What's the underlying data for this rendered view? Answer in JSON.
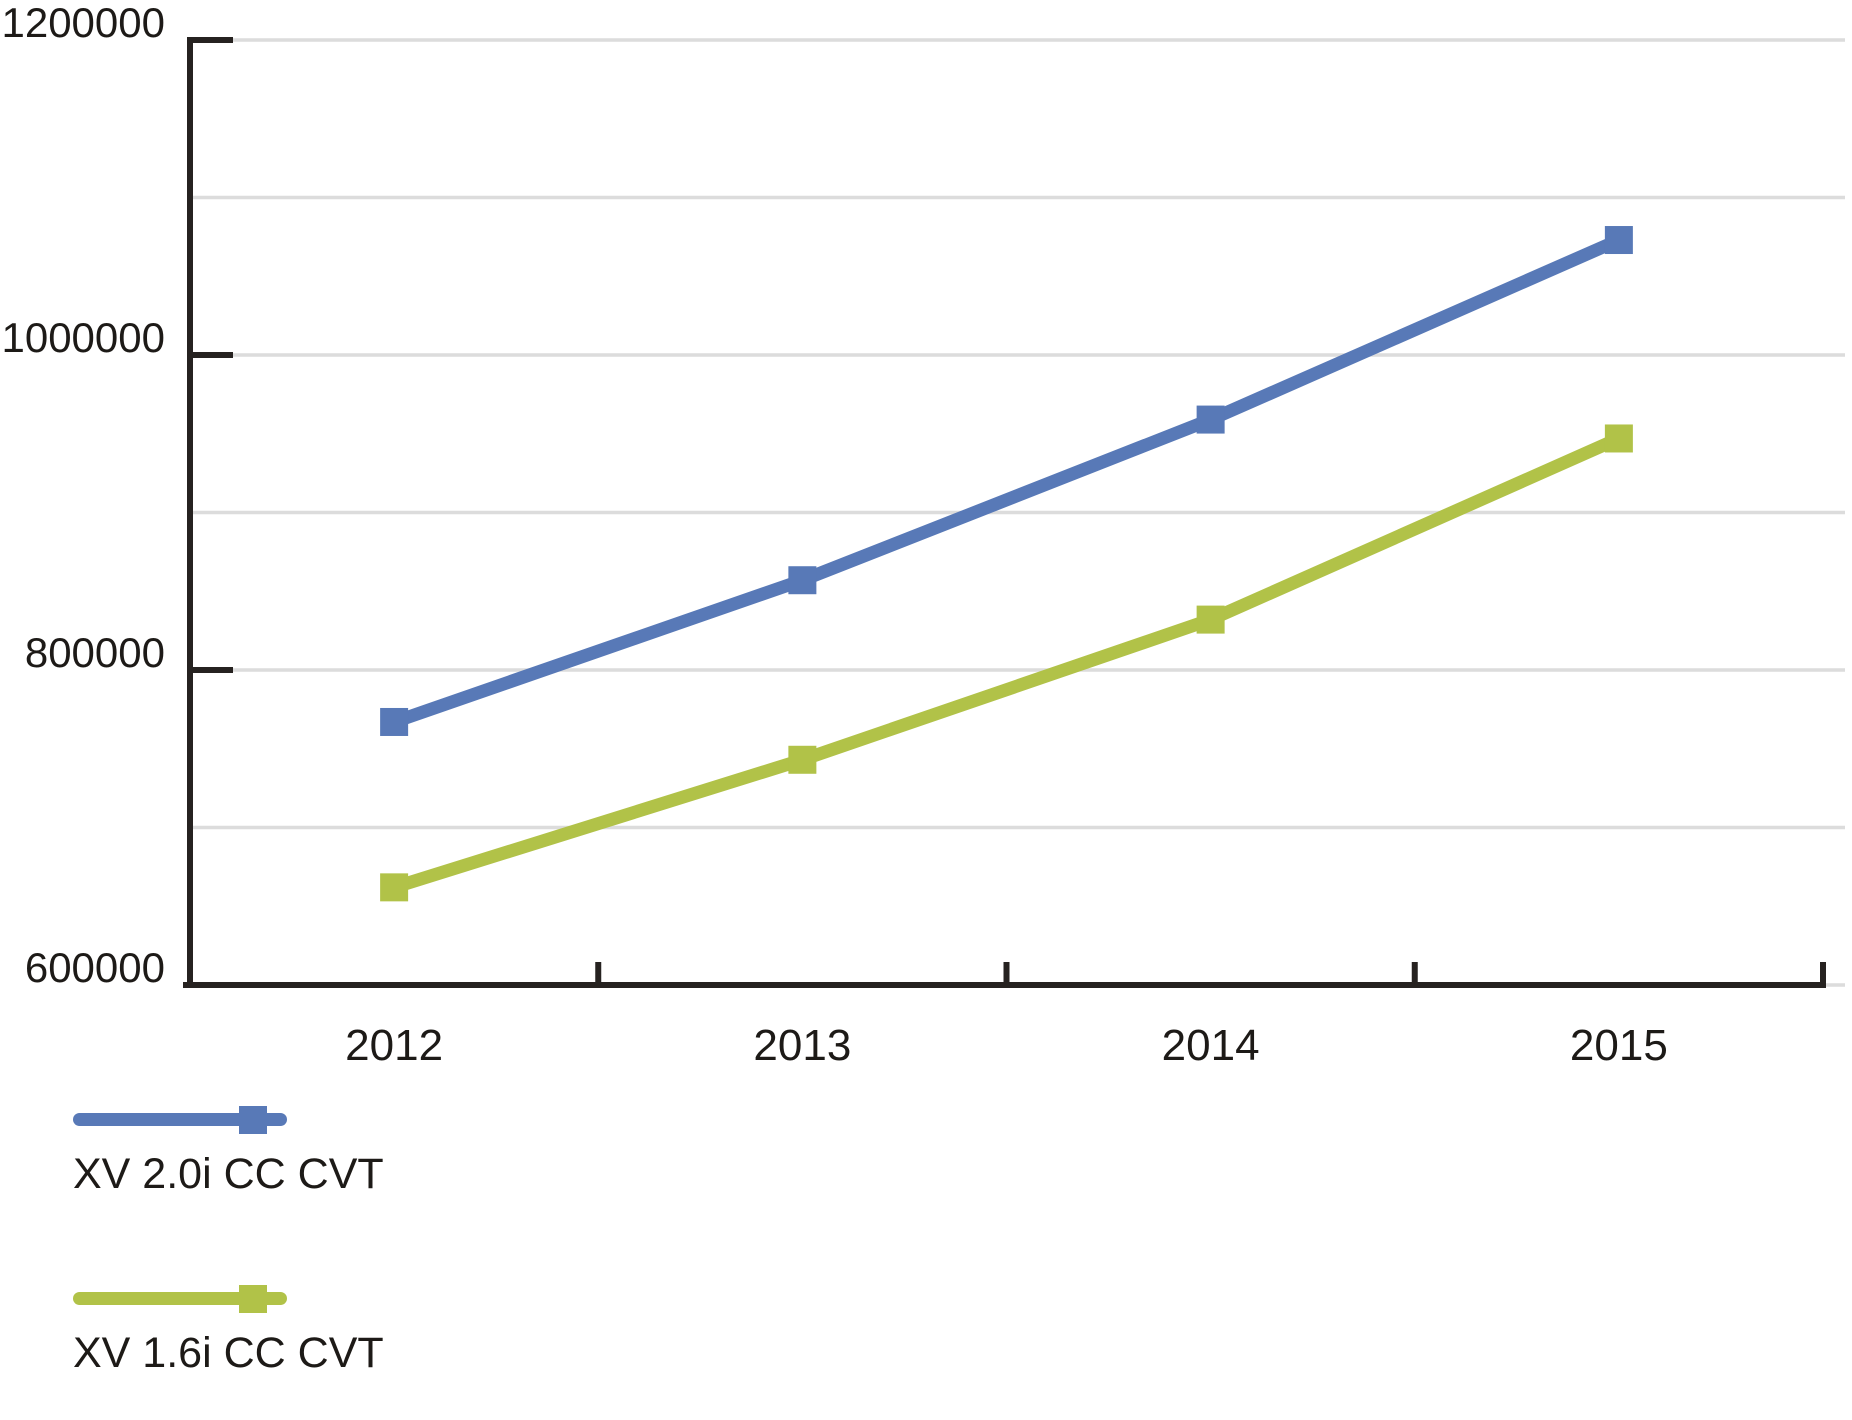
{
  "chart_data": {
    "type": "line",
    "title": "",
    "xlabel": "",
    "ylabel": "",
    "categories": [
      "2012",
      "2013",
      "2014",
      "2015"
    ],
    "series": [
      {
        "name": "XV 2.0i CC CVT",
        "color": "#5879b7",
        "marker": "square",
        "values": [
          767000,
          857000,
          959000,
          1073000
        ]
      },
      {
        "name": "XV 1.6i CC CVT",
        "color": "#b1c248",
        "marker": "square",
        "values": [
          662000,
          743000,
          832000,
          947000
        ]
      }
    ],
    "ylim": [
      600000,
      1200000
    ],
    "y_major_ticks": [
      600000,
      800000,
      1000000,
      1200000
    ],
    "y_tick_labels": [
      "600000",
      "800000",
      "1000000",
      "1200000"
    ],
    "y_minor_grid_step": 100000,
    "grid": "horizontal-minor",
    "legend_position": "bottom-left",
    "colors": {
      "axis": "#262220",
      "grid": "#dcdcdc",
      "text": "#1d1a17",
      "background": "#ffffff"
    }
  }
}
